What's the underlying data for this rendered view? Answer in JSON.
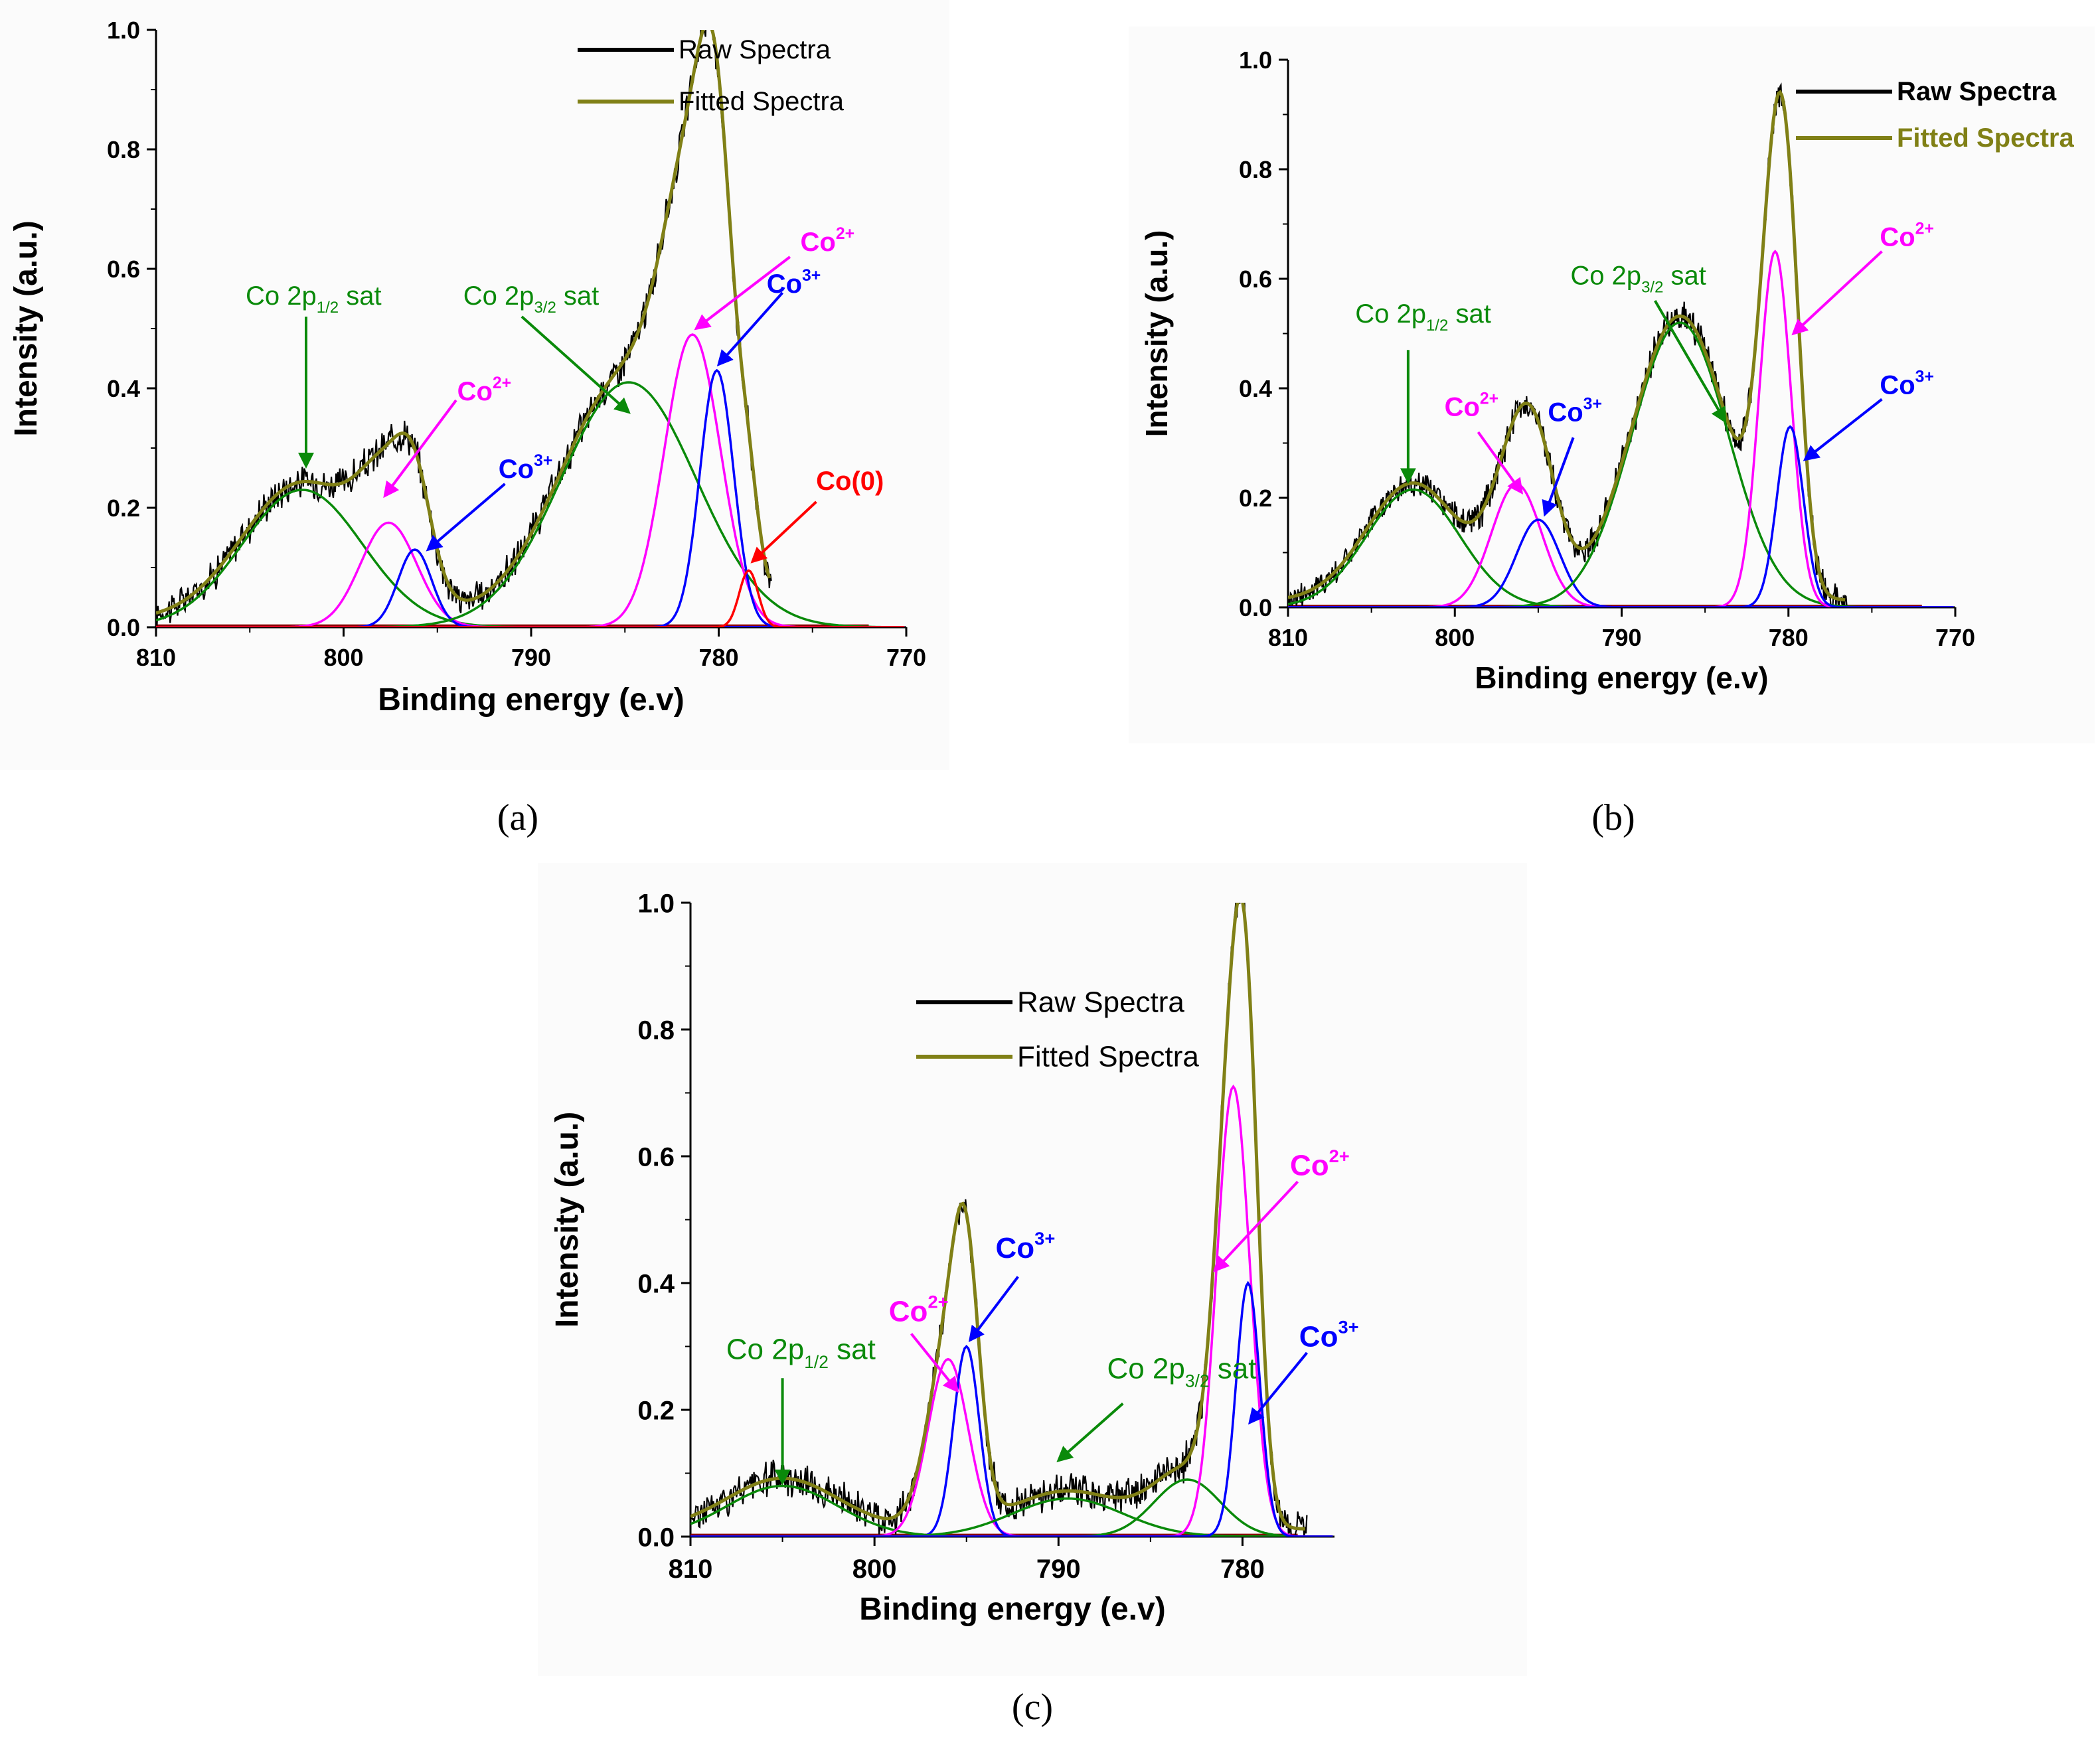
{
  "chart_data": [
    {
      "id": "a",
      "type": "line",
      "caption": "(a)",
      "xlabel": "Binding energy (e.v)",
      "ylabel": "Intensity (a.u.)",
      "xlim": [
        810,
        770
      ],
      "ylim": [
        0,
        1.0
      ],
      "xticks": [
        810,
        800,
        790,
        780,
        770
      ],
      "yticks": [
        0.0,
        0.2,
        0.4,
        0.6,
        0.8,
        1.0
      ],
      "legend": [
        {
          "name": "Raw Spectra",
          "color": "#000000",
          "bold": false
        },
        {
          "name": "Fitted Spectra",
          "color": "#808016",
          "bold": false
        }
      ],
      "peaks": [
        {
          "name": "Co 2p1/2 sat",
          "color": "#0a8a0a",
          "center": 802.2,
          "height": 0.23,
          "sigma": 3.2
        },
        {
          "name": "Co2+ 2p1/2",
          "color": "#ff00ff",
          "center": 797.6,
          "height": 0.175,
          "sigma": 1.5
        },
        {
          "name": "Co3+ 2p1/2",
          "color": "#0000ff",
          "center": 796.2,
          "height": 0.13,
          "sigma": 0.9
        },
        {
          "name": "Co 2p3/2 sat",
          "color": "#0a8a0a",
          "center": 784.8,
          "height": 0.41,
          "sigma": 3.6
        },
        {
          "name": "Co2+ 2p3/2",
          "color": "#ff00ff",
          "center": 781.4,
          "height": 0.49,
          "sigma": 1.5
        },
        {
          "name": "Co3+ 2p3/2",
          "color": "#0000ff",
          "center": 780.1,
          "height": 0.43,
          "sigma": 0.9
        },
        {
          "name": "Co(0)",
          "color": "#ff0000",
          "center": 778.4,
          "height": 0.095,
          "sigma": 0.5
        }
      ],
      "annotations": [
        {
          "label": "Co 2p",
          "sub": "1/2",
          "suffix": " sat",
          "color": "#0a8a0a",
          "bold": false,
          "tx": 801.6,
          "ty": 0.54,
          "from": [
            802.0,
            0.52
          ],
          "to": [
            802.0,
            0.27
          ]
        },
        {
          "label": "Co 2p",
          "sub": "3/2",
          "suffix": " sat",
          "color": "#0a8a0a",
          "bold": false,
          "tx": 790.0,
          "ty": 0.54,
          "from": [
            790.5,
            0.52
          ],
          "to": [
            784.8,
            0.36
          ]
        },
        {
          "label": "Co",
          "sup": "2+",
          "color": "#ff00ff",
          "bold": true,
          "tx": 774.2,
          "ty": 0.63,
          "from": [
            776.2,
            0.62
          ],
          "to": [
            781.2,
            0.5
          ]
        },
        {
          "label": "Co",
          "sup": "3+",
          "color": "#0000ff",
          "bold": true,
          "tx": 776.0,
          "ty": 0.56,
          "from": [
            776.6,
            0.56
          ],
          "to": [
            780.0,
            0.44
          ]
        },
        {
          "label": "Co",
          "sup": "2+",
          "color": "#ff00ff",
          "bold": true,
          "tx": 792.5,
          "ty": 0.38,
          "from": [
            794.0,
            0.38
          ],
          "to": [
            797.8,
            0.22
          ]
        },
        {
          "label": "Co",
          "sup": "3+",
          "color": "#0000ff",
          "bold": true,
          "tx": 790.3,
          "ty": 0.25,
          "from": [
            791.4,
            0.24
          ],
          "to": [
            795.5,
            0.13
          ]
        },
        {
          "label": "Co(0)",
          "color": "#ff0000",
          "bold": true,
          "tx": 773.0,
          "ty": 0.23,
          "from": [
            774.8,
            0.21
          ],
          "to": [
            778.2,
            0.11
          ]
        }
      ]
    },
    {
      "id": "b",
      "type": "line",
      "caption": "(b)",
      "xlabel": "Binding energy (e.v)",
      "ylabel": "Intensity (a.u.)",
      "xlim": [
        810,
        770
      ],
      "ylim": [
        0,
        1.0
      ],
      "xticks": [
        810,
        800,
        790,
        780,
        770
      ],
      "yticks": [
        0.0,
        0.2,
        0.4,
        0.6,
        0.8,
        1.0
      ],
      "legend": [
        {
          "name": "Raw Spectra",
          "color": "#000000",
          "bold": true
        },
        {
          "name": "Fitted Spectra",
          "color": "#808016",
          "bold": true
        }
      ],
      "peaks": [
        {
          "name": "Co 2p1/2 sat",
          "color": "#0a8a0a",
          "center": 802.5,
          "height": 0.215,
          "sigma": 2.8
        },
        {
          "name": "Co2+ 2p1/2",
          "color": "#ff00ff",
          "center": 796.3,
          "height": 0.225,
          "sigma": 1.5
        },
        {
          "name": "Co3+ 2p1/2",
          "color": "#0000ff",
          "center": 795.0,
          "height": 0.16,
          "sigma": 1.3
        },
        {
          "name": "Co 2p3/2 sat",
          "color": "#0a8a0a",
          "center": 786.5,
          "height": 0.52,
          "sigma": 2.9
        },
        {
          "name": "Co2+ 2p3/2",
          "color": "#ff00ff",
          "center": 780.8,
          "height": 0.65,
          "sigma": 0.95
        },
        {
          "name": "Co3+ 2p3/2",
          "color": "#0000ff",
          "center": 779.9,
          "height": 0.33,
          "sigma": 0.8
        }
      ],
      "annotations": [
        {
          "label": "Co 2p",
          "sub": "1/2",
          "suffix": " sat",
          "color": "#0a8a0a",
          "bold": false,
          "tx": 801.9,
          "ty": 0.52,
          "from": [
            802.8,
            0.47
          ],
          "to": [
            802.8,
            0.23
          ]
        },
        {
          "label": "Co 2p",
          "sub": "3/2",
          "suffix": " sat",
          "color": "#0a8a0a",
          "bold": false,
          "tx": 789.0,
          "ty": 0.59,
          "from": [
            788.0,
            0.56
          ],
          "to": [
            783.8,
            0.34
          ]
        },
        {
          "label": "Co",
          "sup": "2+",
          "color": "#ff00ff",
          "bold": true,
          "tx": 772.9,
          "ty": 0.66,
          "from": [
            774.4,
            0.65
          ],
          "to": [
            779.7,
            0.5
          ]
        },
        {
          "label": "Co",
          "sup": "3+",
          "color": "#0000ff",
          "bold": true,
          "tx": 772.9,
          "ty": 0.39,
          "from": [
            774.4,
            0.38
          ],
          "to": [
            779.0,
            0.27
          ]
        },
        {
          "label": "Co",
          "sup": "2+",
          "color": "#ff00ff",
          "bold": true,
          "tx": 799.0,
          "ty": 0.35,
          "from": [
            798.6,
            0.32
          ],
          "to": [
            796.0,
            0.21
          ]
        },
        {
          "label": "Co",
          "sup": "3+",
          "color": "#0000ff",
          "bold": true,
          "tx": 792.8,
          "ty": 0.34,
          "from": [
            792.9,
            0.31
          ],
          "to": [
            794.6,
            0.17
          ]
        }
      ]
    },
    {
      "id": "c",
      "type": "line",
      "caption": "(c)",
      "xlabel": "Binding energy (e.v)",
      "ylabel": "Intensity (a.u.)",
      "xlim": [
        810,
        775
      ],
      "ylim": [
        0,
        1.0
      ],
      "xticks": [
        810,
        800,
        790,
        780
      ],
      "yticks": [
        0.0,
        0.2,
        0.4,
        0.6,
        0.8,
        1.0
      ],
      "legend": [
        {
          "name": "Raw Spectra",
          "color": "#000000",
          "bold": false
        },
        {
          "name": "Fitted Spectra",
          "color": "#808016",
          "bold": false
        }
      ],
      "peaks": [
        {
          "name": "Co 2p1/2 sat",
          "color": "#0a8a0a",
          "center": 805.0,
          "height": 0.08,
          "sigma": 3.0
        },
        {
          "name": "Co2+ 2p1/2",
          "color": "#ff00ff",
          "center": 796.0,
          "height": 0.28,
          "sigma": 1.1
        },
        {
          "name": "Co3+ 2p1/2",
          "color": "#0000ff",
          "center": 795.0,
          "height": 0.3,
          "sigma": 0.7
        },
        {
          "name": "Co 2p3/2 sat (broad)",
          "color": "#0a8a0a",
          "center": 789.5,
          "height": 0.06,
          "sigma": 3.0
        },
        {
          "name": "Co 2p3/2 sat",
          "color": "#0a8a0a",
          "center": 783.0,
          "height": 0.09,
          "sigma": 1.8
        },
        {
          "name": "Co2+ 2p3/2",
          "color": "#ff00ff",
          "center": 780.5,
          "height": 0.71,
          "sigma": 0.9
        },
        {
          "name": "Co3+ 2p3/2",
          "color": "#0000ff",
          "center": 779.7,
          "height": 0.4,
          "sigma": 0.65
        }
      ],
      "annotations": [
        {
          "label": "Co 2p",
          "sub": "1/2",
          "suffix": " sat",
          "color": "#0a8a0a",
          "bold": false,
          "tx": 804.0,
          "ty": 0.28,
          "from": [
            805.0,
            0.25
          ],
          "to": [
            805.0,
            0.085
          ]
        },
        {
          "label": "Co 2p",
          "sub": "3/2",
          "suffix": " sat",
          "color": "#0a8a0a",
          "bold": false,
          "tx": 783.3,
          "ty": 0.25,
          "from": [
            786.5,
            0.21
          ],
          "to": [
            790.0,
            0.12
          ]
        },
        {
          "label": "Co",
          "sup": "2+",
          "color": "#ff00ff",
          "bold": true,
          "tx": 775.8,
          "ty": 0.57,
          "from": [
            777.0,
            0.56
          ],
          "to": [
            781.5,
            0.42
          ]
        },
        {
          "label": "Co",
          "sup": "3+",
          "color": "#0000ff",
          "bold": true,
          "tx": 775.3,
          "ty": 0.3,
          "from": [
            776.5,
            0.29
          ],
          "to": [
            779.6,
            0.18
          ]
        },
        {
          "label": "Co",
          "sup": "2+",
          "color": "#ff00ff",
          "bold": true,
          "tx": 797.6,
          "ty": 0.34,
          "from": [
            798.0,
            0.32
          ],
          "to": [
            795.5,
            0.23
          ]
        },
        {
          "label": "Co",
          "sup": "3+",
          "color": "#0000ff",
          "bold": true,
          "tx": 791.8,
          "ty": 0.44,
          "from": [
            792.2,
            0.41
          ],
          "to": [
            794.8,
            0.31
          ]
        }
      ]
    }
  ]
}
